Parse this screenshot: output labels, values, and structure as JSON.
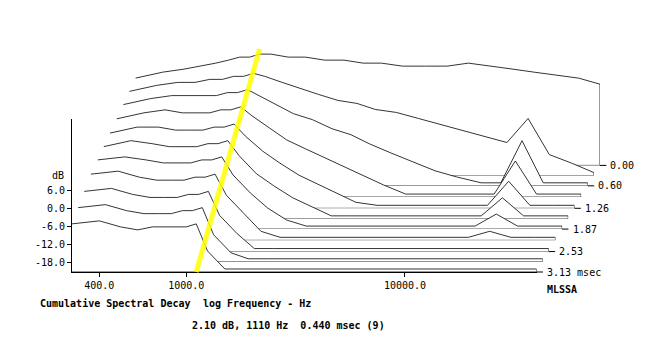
{
  "chart_data": {
    "type": "waterfall",
    "title": "Cumulative Spectral Decay",
    "x_label": "log Frequency - Hz",
    "y_label": "dB",
    "readout": "2.10 dB, 1110 Hz  0.440 msec (9)",
    "annotations": [
      "MLSSA"
    ],
    "log": "x",
    "grid": false,
    "color": "#000000",
    "x": [
      300,
      400,
      500,
      600,
      700,
      800,
      900,
      1000,
      1110,
      1250,
      1500,
      1800,
      2200,
      2700,
      3300,
      4000,
      5000,
      6300,
      8000,
      10000,
      13000,
      16000,
      20000,
      25000,
      32000,
      40000
    ],
    "xlim": [
      300,
      40000
    ],
    "xticks": [
      {
        "value": 400,
        "label": "400.0"
      },
      {
        "value": 1000,
        "label": "1000.0"
      },
      {
        "value": 10000,
        "label": "10000.0"
      }
    ],
    "ylim": [
      -21,
      30
    ],
    "yticks": [
      {
        "value": 6,
        "label": "6.0"
      },
      {
        "value": 0,
        "label": "0.0"
      },
      {
        "value": -6,
        "label": "-6.0"
      },
      {
        "value": -12,
        "label": "-12.0"
      },
      {
        "value": -18,
        "label": "-18.0"
      }
    ],
    "tlim": [
      0,
      3.13
    ],
    "tticks": [
      {
        "value": 0,
        "label": "0.00"
      },
      {
        "value": 0.6,
        "label": "0.60"
      },
      1.26,
      1.87,
      2.53,
      {
        "value": 3.13,
        "label": "3.13 msec"
      }
    ],
    "cursor": {
      "frequency": 1110,
      "color": "#ffff00"
    },
    "slices": [
      {
        "time": 0,
        "values": [
          8,
          10,
          11,
          12,
          13,
          14,
          15,
          15,
          16,
          16,
          15,
          15,
          14,
          14,
          13,
          13,
          12,
          12,
          12,
          13,
          12,
          11,
          10,
          9,
          8,
          6
        ]
      },
      {
        "time": 0.3,
        "values": [
          7,
          9,
          10,
          10,
          11,
          11,
          12,
          12,
          13,
          12,
          10,
          8,
          6,
          4,
          3,
          1,
          0,
          -2,
          -4,
          -6,
          -8,
          -10,
          -2,
          -14,
          -17,
          -20
        ]
      },
      {
        "time": 0.6,
        "values": [
          6,
          8,
          9,
          9,
          9,
          9,
          10,
          10,
          11,
          9,
          6,
          3,
          1,
          -2,
          -4,
          -7,
          -10,
          -13,
          -16,
          -18,
          -20,
          -20,
          -6,
          -20,
          -20,
          -20
        ]
      },
      {
        "time": 0.93,
        "values": [
          5,
          7,
          8,
          7,
          7,
          7,
          8,
          8,
          9,
          6,
          2,
          -2,
          -5,
          -8,
          -11,
          -14,
          -17,
          -20,
          -20,
          -20,
          -20,
          -20,
          -9,
          -20,
          -20,
          -20
        ]
      },
      {
        "time": 1.26,
        "values": [
          4,
          6,
          6,
          5,
          5,
          5,
          6,
          6,
          7,
          3,
          -2,
          -6,
          -10,
          -13,
          -16,
          -19,
          -20,
          -20,
          -20,
          -20,
          -20,
          -20,
          -12,
          -20,
          -20,
          -20
        ]
      },
      {
        "time": 1.57,
        "values": [
          3,
          5,
          4,
          3,
          3,
          3,
          4,
          4,
          5,
          0,
          -6,
          -10,
          -14,
          -17,
          -20,
          -20,
          -20,
          -20,
          -20,
          -20,
          -20,
          -20,
          -14,
          -20,
          -20,
          -20
        ]
      },
      {
        "time": 1.87,
        "values": [
          2,
          3,
          2,
          1,
          1,
          1,
          2,
          2,
          3,
          -3,
          -9,
          -14,
          -18,
          -20,
          -20,
          -20,
          -20,
          -20,
          -20,
          -20,
          -20,
          -20,
          -16,
          -20,
          -20,
          -20
        ]
      },
      {
        "time": 2.2,
        "values": [
          1,
          2,
          0,
          -1,
          -1,
          -1,
          0,
          0,
          1,
          -6,
          -12,
          -18,
          -20,
          -20,
          -20,
          -20,
          -20,
          -20,
          -20,
          -20,
          -20,
          -20,
          -18,
          -20,
          -20,
          -20
        ]
      },
      {
        "time": 2.53,
        "values": [
          -1,
          0,
          -2,
          -3,
          -3,
          -3,
          -2,
          -2,
          -1,
          -9,
          -15,
          -20,
          -20,
          -20,
          -20,
          -20,
          -20,
          -20,
          -20,
          -20,
          -20,
          -20,
          -20,
          -20,
          -20,
          -20
        ]
      },
      {
        "time": 2.83,
        "values": [
          -3,
          -2,
          -4,
          -5,
          -5,
          -5,
          -4,
          -4,
          -3,
          -12,
          -18,
          -20,
          -20,
          -20,
          -20,
          -20,
          -20,
          -20,
          -20,
          -20,
          -20,
          -20,
          -20,
          -20,
          -20,
          -20
        ]
      },
      {
        "time": 3.13,
        "values": [
          -5,
          -4,
          -6,
          -7,
          -6,
          -6,
          -6,
          -6,
          -5,
          -14,
          -20,
          -20,
          -20,
          -20,
          -20,
          -20,
          -20,
          -20,
          -20,
          -20,
          -20,
          -20,
          -20,
          -20,
          -20,
          -20
        ]
      }
    ]
  }
}
